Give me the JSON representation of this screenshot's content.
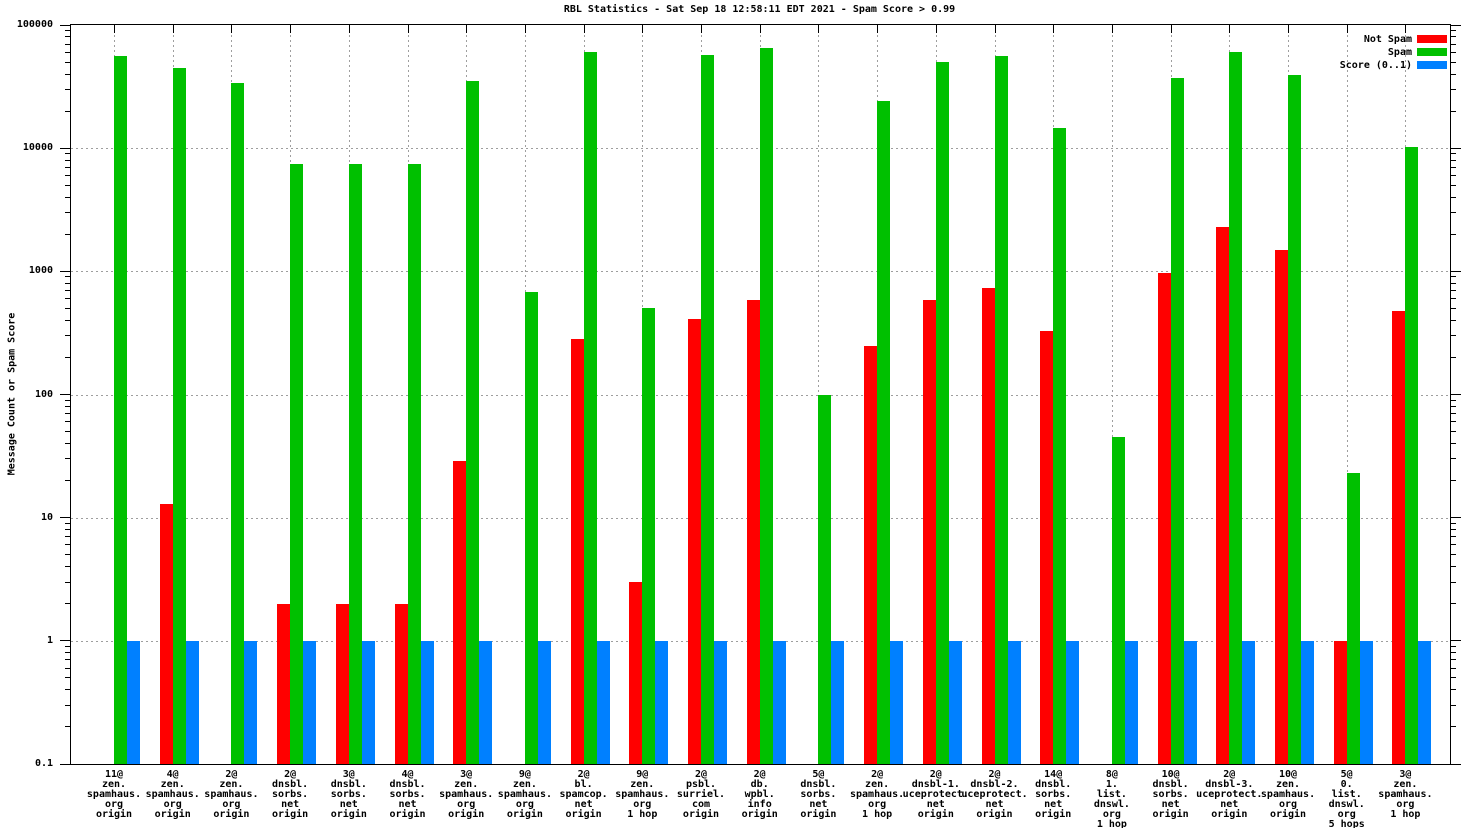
{
  "chart_data": {
    "type": "bar",
    "title": "RBL Statistics - Sat Sep 18 12:58:11 EDT 2021 - Spam Score > 0.99",
    "ylabel": "Message Count or Spam Score",
    "xlabel": "",
    "y_scale": "log",
    "ylim": [
      0.1,
      100000
    ],
    "y_ticks": [
      "100000",
      "10000",
      "1000",
      "100",
      "10",
      "1",
      "0.1"
    ],
    "grid": true,
    "legend_position": "top-right",
    "categories": [
      "11@ zen.spamhaus.org origin",
      "4@ zen.spamhaus.org origin",
      "2@ zen.spamhaus.org origin",
      "2@ dnsbl.sorbs.net origin",
      "3@ dnsbl.sorbs.net origin",
      "4@ dnsbl.sorbs.net origin",
      "3@ zen.spamhaus.org origin",
      "9@ zen.spamhaus.org origin",
      "2@ bl.spamcop.net origin",
      "9@ zen.spamhaus.org 1 hop",
      "2@ psbl.surriel.com origin",
      "2@ db.wpbl.info origin",
      "5@ dnsbl.sorbs.net origin",
      "2@ zen.spamhaus.org 1 hop",
      "2@ dnsbl-1.uceprotect.net origin",
      "2@ dnsbl-2.uceprotect.net origin",
      "14@ dnsbl.sorbs.net origin",
      "8@ 1.list.dnswl.org 1 hop",
      "10@ dnsbl.sorbs.net origin",
      "2@ dnsbl-3.uceprotect.net origin",
      "10@ zen.spamhaus.org origin",
      "5@ 0.list.dnswl.org 5 hops",
      "3@ zen.spamhaus.org 1 hop"
    ],
    "category_lines": [
      [
        "11@",
        "zen.",
        "spamhaus.",
        "org",
        "origin"
      ],
      [
        "4@",
        "zen.",
        "spamhaus.",
        "org",
        "origin"
      ],
      [
        "2@",
        "zen.",
        "spamhaus.",
        "org",
        "origin"
      ],
      [
        "2@",
        "dnsbl.",
        "sorbs.",
        "net",
        "origin"
      ],
      [
        "3@",
        "dnsbl.",
        "sorbs.",
        "net",
        "origin"
      ],
      [
        "4@",
        "dnsbl.",
        "sorbs.",
        "net",
        "origin"
      ],
      [
        "3@",
        "zen.",
        "spamhaus.",
        "org",
        "origin"
      ],
      [
        "9@",
        "zen.",
        "spamhaus.",
        "org",
        "origin"
      ],
      [
        "2@",
        "bl.",
        "spamcop.",
        "net",
        "origin"
      ],
      [
        "9@",
        "zen.",
        "spamhaus.",
        "org",
        "1 hop"
      ],
      [
        "2@",
        "psbl.",
        "surriel.",
        "com",
        "origin"
      ],
      [
        "2@",
        "db.",
        "wpbl.",
        "info",
        "origin"
      ],
      [
        "5@",
        "dnsbl.",
        "sorbs.",
        "net",
        "origin"
      ],
      [
        "2@",
        "zen.",
        "spamhaus.",
        "org",
        "1 hop"
      ],
      [
        "2@",
        "dnsbl-1.",
        "uceprotect.",
        "net",
        "origin"
      ],
      [
        "2@",
        "dnsbl-2.",
        "uceprotect.",
        "net",
        "origin"
      ],
      [
        "14@",
        "dnsbl.",
        "sorbs.",
        "net",
        "origin"
      ],
      [
        "8@",
        "1.",
        "list.",
        "dnswl.",
        "org",
        "1 hop"
      ],
      [
        "10@",
        "dnsbl.",
        "sorbs.",
        "net",
        "origin"
      ],
      [
        "2@",
        "dnsbl-3.",
        "uceprotect.",
        "net",
        "origin"
      ],
      [
        "10@",
        "zen.",
        "spamhaus.",
        "org",
        "origin"
      ],
      [
        "5@",
        "0.",
        "list.",
        "dnswl.",
        "org",
        "5 hops"
      ],
      [
        "3@",
        "zen.",
        "spamhaus.",
        "org",
        "1 hop"
      ]
    ],
    "series": [
      {
        "name": "Not Spam",
        "color": "#ff0000",
        "values": [
          0,
          13,
          0,
          2,
          2,
          2,
          29,
          0,
          280,
          3,
          410,
          580,
          0,
          250,
          580,
          730,
          330,
          0,
          970,
          2300,
          1500,
          1,
          480
        ]
      },
      {
        "name": "Spam",
        "color": "#00c000",
        "values": [
          56000,
          45000,
          34000,
          7400,
          7400,
          7400,
          35000,
          680,
          60000,
          500,
          57000,
          65000,
          100,
          24000,
          50000,
          56000,
          14500,
          45,
          37000,
          60000,
          39000,
          23,
          10300
        ]
      },
      {
        "name": "Score (0..1)",
        "color": "#0080ff",
        "values": [
          1,
          1,
          1,
          1,
          1,
          1,
          1,
          1,
          1,
          1,
          1,
          1,
          1,
          1,
          1,
          1,
          1,
          1,
          1,
          1,
          1,
          1,
          1
        ]
      }
    ]
  }
}
